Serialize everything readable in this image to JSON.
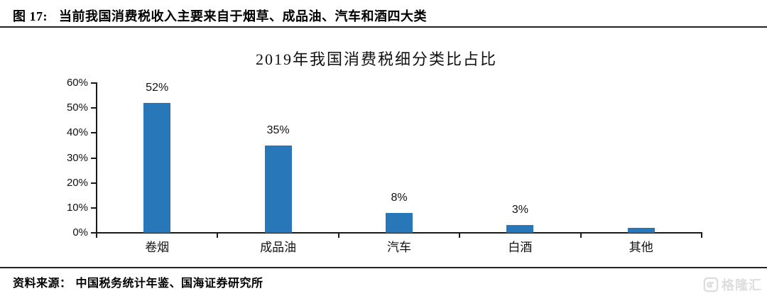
{
  "figure_header": {
    "label": "图 17:",
    "title": "当前我国消费税收入主要来自于烟草、成品油、汽车和酒四大类"
  },
  "chart_data": {
    "type": "bar",
    "title": "2019年我国消费税细分类比占比",
    "categories": [
      "卷烟",
      "成品油",
      "汽车",
      "白酒",
      "其他"
    ],
    "values": [
      52,
      35,
      8,
      3,
      2
    ],
    "data_labels": [
      "52%",
      "35%",
      "8%",
      "3%",
      ""
    ],
    "ytick_values": [
      0,
      10,
      20,
      30,
      40,
      50,
      60
    ],
    "ytick_labels": [
      "0%",
      "10%",
      "20%",
      "30%",
      "40%",
      "50%",
      "60%"
    ],
    "ylim": [
      0,
      60
    ],
    "xlabel": "",
    "ylabel": "",
    "grid": false,
    "legend": "none",
    "bar_color": "#2878B9",
    "axis_color": "#1a1a1a"
  },
  "source": {
    "label": "资料来源：",
    "text": "中国税务统计年鉴、国海证券研究所"
  },
  "watermark": {
    "text": "格隆汇",
    "color": "#dedede"
  }
}
